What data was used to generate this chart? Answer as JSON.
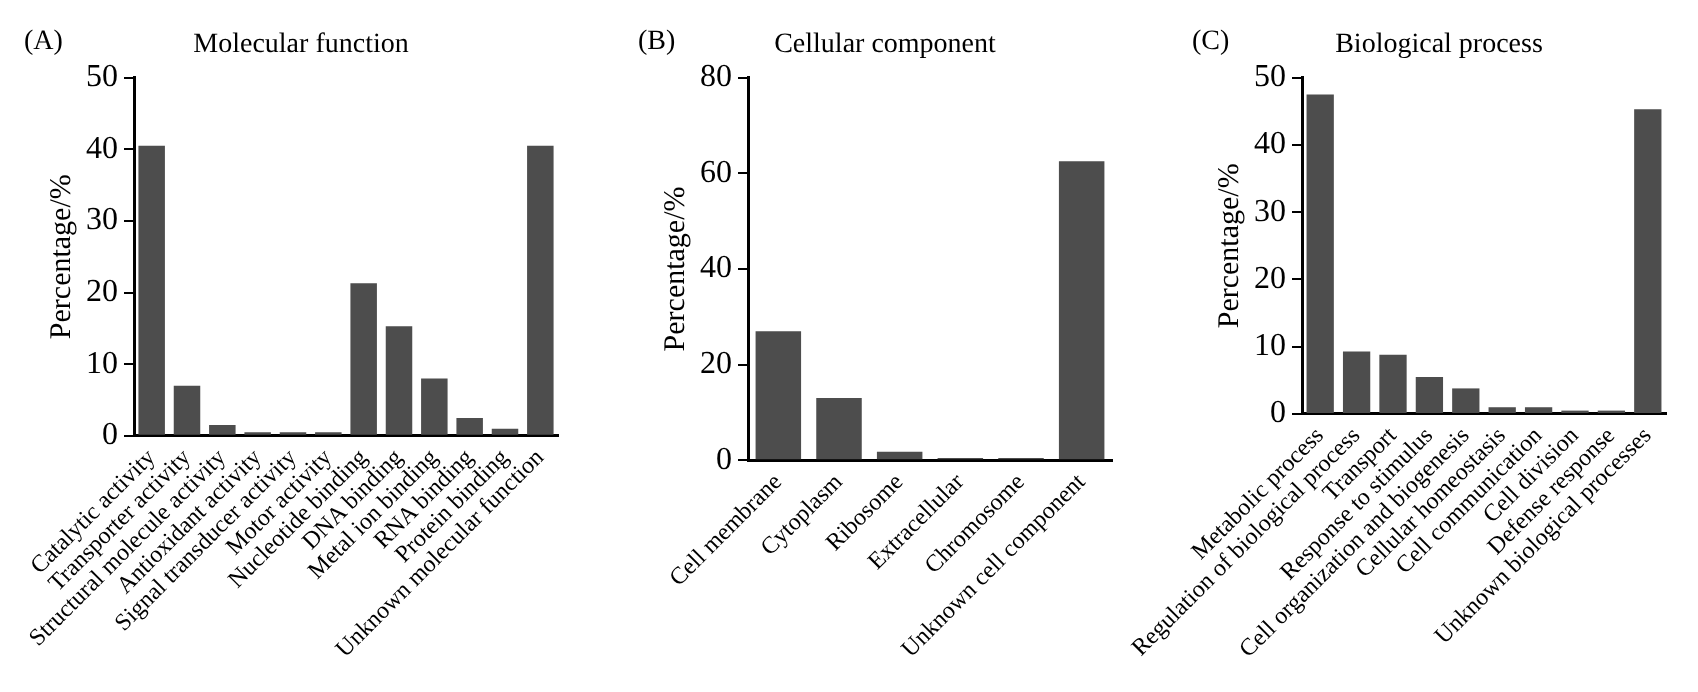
{
  "chart_data": [
    {
      "type": "bar",
      "title": "Molecular function",
      "annotations": [
        "(A)"
      ],
      "ylabel": "Percentage/%",
      "categories": [
        "Catalytic activity",
        "Transporter activity",
        "Structural molecule activity",
        "Antioxidant activity",
        "Signal transducer activity",
        "Motor activity",
        "Nucleotide binding",
        "DNA binding",
        "Metal ion binding",
        "RNA binding",
        "Protein binding",
        "Unknown molecular function"
      ],
      "values": [
        40.5,
        7,
        1.5,
        0.5,
        0.5,
        0.5,
        21.3,
        15.3,
        8,
        2.5,
        1,
        40.5
      ],
      "color": "#4d4d4d",
      "ylim": [
        0,
        50
      ],
      "yticks": [
        0,
        10,
        20,
        30,
        40,
        50
      ],
      "grid": false,
      "legend": false
    },
    {
      "type": "bar",
      "title": "Cellular component",
      "annotations": [
        "(B)"
      ],
      "ylabel": "Percentage/%",
      "categories": [
        "Cell membrane",
        "Cytoplasm",
        "Ribosome",
        "Extracellular",
        "Chromosome",
        "Unknown cell component"
      ],
      "values": [
        27,
        13,
        1.8,
        0.5,
        0.5,
        62.5
      ],
      "color": "#4d4d4d",
      "ylim": [
        0,
        80
      ],
      "yticks": [
        0,
        20,
        40,
        60,
        80
      ],
      "grid": false,
      "legend": false
    },
    {
      "type": "bar",
      "title": "Biological process",
      "annotations": [
        "(C)"
      ],
      "ylabel": "Percentage/%",
      "categories": [
        "Metabolic process",
        "Regulation of biological process",
        "Transport",
        "Response to stimulus",
        "Cell organization and biogenesis",
        "Cellular homeostasis",
        "Cell communication",
        "Cell division",
        "Defense response",
        "Unknown biological processes"
      ],
      "values": [
        47.5,
        9.3,
        8.8,
        5.5,
        3.8,
        1,
        1,
        0.5,
        0.5,
        45.3
      ],
      "color": "#4d4d4d",
      "ylim": [
        0,
        50
      ],
      "yticks": [
        0,
        10,
        20,
        30,
        40,
        50
      ],
      "grid": false,
      "legend": false
    }
  ]
}
